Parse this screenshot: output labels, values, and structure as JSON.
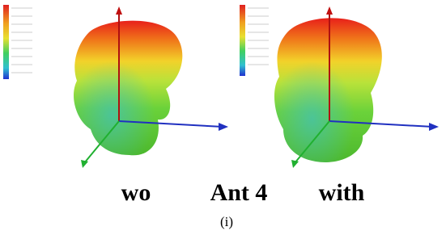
{
  "figure": {
    "panels": [
      {
        "label": "wo"
      },
      {
        "label": "with"
      }
    ],
    "center_label": "Ant 4",
    "caption": "(i)"
  }
}
